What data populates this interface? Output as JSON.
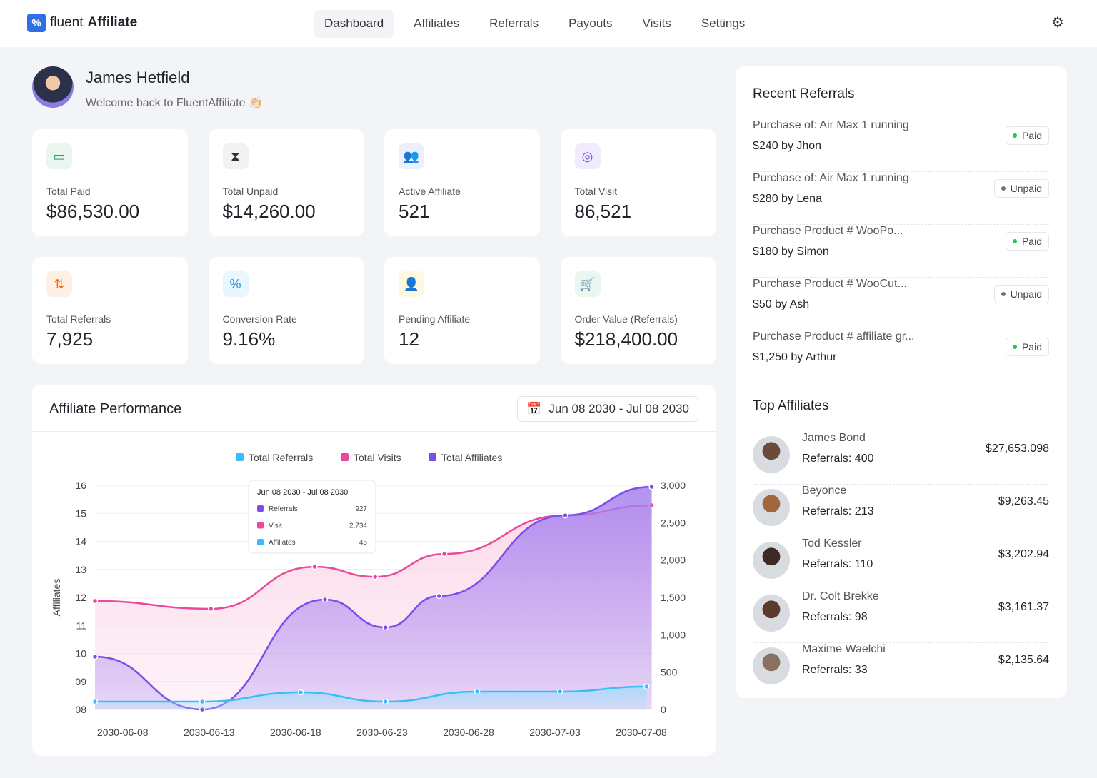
{
  "brand": {
    "light": "fluent",
    "bold": "Affiliate"
  },
  "nav": [
    "Dashboard",
    "Affiliates",
    "Referrals",
    "Payouts",
    "Visits",
    "Settings"
  ],
  "user": {
    "name": "James Hetfield",
    "welcome": "Welcome back to FluentAffiliate 👏🏻"
  },
  "stats": [
    {
      "label": "Total Paid",
      "value": "$86,530.00",
      "icon": "wallet-icon",
      "color": "#22a06b",
      "bg": "#eaf7f1"
    },
    {
      "label": "Total Unpaid",
      "value": "$14,260.00",
      "icon": "hourglass-icon",
      "color": "#333333",
      "bg": "#f1f2f4"
    },
    {
      "label": "Active Affiliate",
      "value": "521",
      "icon": "users-icon",
      "color": "#3b5bdb",
      "bg": "#eaf0fd"
    },
    {
      "label": "Total Visit",
      "value": "86,521",
      "icon": "eye-icon",
      "color": "#6741d9",
      "bg": "#f1ecfd"
    },
    {
      "label": "Total Referrals",
      "value": "7,925",
      "icon": "referrals-icon",
      "color": "#f76707",
      "bg": "#fff0e6"
    },
    {
      "label": "Conversion Rate",
      "value": "9.16%",
      "icon": "percent-icon",
      "color": "#1c9bd8",
      "bg": "#e8f6fd"
    },
    {
      "label": "Pending Affiliate",
      "value": "12",
      "icon": "user-pending-icon",
      "color": "#f0a500",
      "bg": "#fff8e1"
    },
    {
      "label": "Order Value (Referrals)",
      "value": "$218,400.00",
      "icon": "cart-icon",
      "color": "#22a06b",
      "bg": "#eaf7f1"
    }
  ],
  "performance": {
    "title": "Affiliate Performance",
    "date_range": "Jun 08 2030 - Jul 08 2030"
  },
  "chart_data": {
    "type": "area",
    "legend": [
      {
        "name": "Total Referrals",
        "color": "#38bdf8"
      },
      {
        "name": "Total Visits",
        "color": "#ec4899"
      },
      {
        "name": "Total Affiliates",
        "color": "#7c4dea"
      }
    ],
    "legend_position": "top-center",
    "ylabel_left": "Affiliates",
    "left_ticks": [
      "16",
      "15",
      "14",
      "13",
      "12",
      "11",
      "10",
      "09",
      "08"
    ],
    "right_ticks": [
      "3,000",
      "2,500",
      "2,000",
      "1,500",
      "1,000",
      "500",
      "0"
    ],
    "right_range": [
      0,
      3000
    ],
    "x_ticks": [
      "2030-06-08",
      "2030-06-13",
      "2030-06-18",
      "2030-06-23",
      "2030-06-28",
      "2030-07-03",
      "2030-07-08"
    ],
    "x_range_days": [
      -1.6,
      30.7
    ],
    "series": [
      {
        "name": "Total Visits",
        "color": "#ec4899",
        "fill": "#fbd3e6",
        "points": [
          [
            -1.6,
            1452
          ],
          [
            5.1,
            1347
          ],
          [
            11.1,
            1910
          ],
          [
            14.6,
            1776
          ],
          [
            18.6,
            2082
          ],
          [
            25.6,
            2598
          ],
          [
            30.6,
            2732
          ]
        ]
      },
      {
        "name": "Total Affiliates",
        "color": "#7c4dea",
        "fill": "#a47ff0",
        "points": [
          [
            -1.6,
            707
          ],
          [
            4.6,
            0
          ],
          [
            11.7,
            1471
          ],
          [
            15.2,
            1098
          ],
          [
            18.3,
            1519
          ],
          [
            25.6,
            2598
          ],
          [
            30.6,
            2980
          ]
        ]
      },
      {
        "name": "Total Referrals",
        "color": "#38bdf8",
        "fill": "#a5ddfb",
        "points": [
          [
            -1.6,
            105
          ],
          [
            4.6,
            105
          ],
          [
            10.3,
            229
          ],
          [
            15.2,
            105
          ],
          [
            20.5,
            239
          ],
          [
            25.3,
            239
          ],
          [
            30.3,
            306
          ]
        ]
      }
    ],
    "tooltip": {
      "title": "Jun 08 2030 - Jul 08 2030",
      "rows": [
        {
          "label": "Referrals",
          "value": "927",
          "color": "#7c4dea"
        },
        {
          "label": "Visit",
          "value": "2,734",
          "color": "#ec4899"
        },
        {
          "label": "Affiliates",
          "value": "45",
          "color": "#38bdf8"
        }
      ]
    }
  },
  "recent": {
    "title": "Recent Referrals",
    "items": [
      {
        "title": "Purchase of: Air Max 1 running",
        "amount": "$240 by Jhon",
        "status": "Paid"
      },
      {
        "title": "Purchase of: Air Max 1 running",
        "amount": "$280 by Lena",
        "status": "Unpaid"
      },
      {
        "title": "Purchase Product # WooPo...",
        "amount": "$180 by Simon",
        "status": "Paid"
      },
      {
        "title": "Purchase Product # WooCut...",
        "amount": "$50 by Ash",
        "status": "Unpaid"
      },
      {
        "title": "Purchase Product # affiliate gr...",
        "amount": "$1,250 by Arthur",
        "status": "Paid"
      }
    ]
  },
  "top": {
    "title": "Top Affiliates",
    "items": [
      {
        "name": "James Bond",
        "refs": "Referrals: 400",
        "amount": "$27,653.098"
      },
      {
        "name": "Beyonce",
        "refs": "Referrals: 213",
        "amount": "$9,263.45"
      },
      {
        "name": "Tod Kessler",
        "refs": "Referrals: 110",
        "amount": "$3,202.94"
      },
      {
        "name": "Dr. Colt Brekke",
        "refs": "Referrals: 98",
        "amount": "$3,161.37"
      },
      {
        "name": "Maxime Waelchi",
        "refs": "Referrals: 33",
        "amount": "$2,135.64"
      }
    ]
  },
  "colors": {
    "paid": "#22c55e",
    "unpaid": "#6b7280"
  }
}
